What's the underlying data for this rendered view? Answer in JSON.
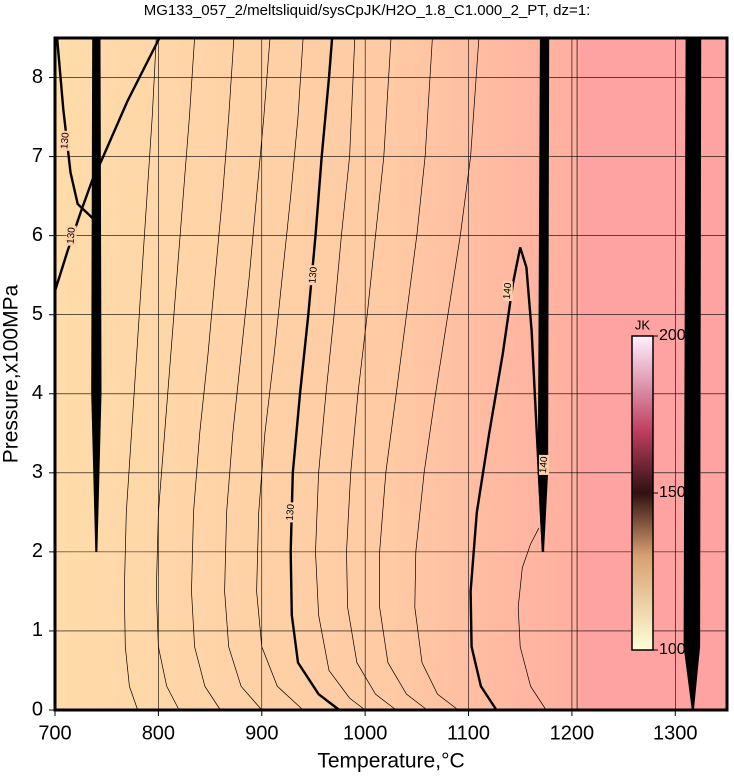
{
  "chart_data": {
    "type": "contour",
    "title": "MG133_057_2/meltsliquid/sysCpJK/H2O_1.8_C1.000_2_PT, dz=1:",
    "xlabel": "Temperature,°C",
    "ylabel": "Pressure,x100MPa",
    "xlim": [
      700,
      1350
    ],
    "ylim": [
      0,
      8.5
    ],
    "xticks": [
      700,
      800,
      900,
      1000,
      1100,
      1200,
      1300
    ],
    "yticks": [
      0,
      1,
      2,
      3,
      4,
      5,
      6,
      7,
      8
    ],
    "grid": true,
    "colorbar": {
      "label": "JK",
      "lim": [
        100,
        200
      ],
      "ticks": [
        100,
        150,
        200
      ]
    },
    "contours": [
      {
        "level": 130,
        "bold": true,
        "x": [
          975,
          955,
          935,
          929,
          928,
          930,
          937,
          945,
          952,
          958,
          965,
          968
        ],
        "y": [
          0,
          0.2,
          0.6,
          1.2,
          2,
          3,
          4,
          5,
          6,
          7,
          8,
          8.5
        ]
      },
      {
        "level": 140,
        "bold": true,
        "x": [
          1127,
          1112,
          1103,
          1102,
          1108,
          1120,
          1133,
          1143,
          1150,
          1156,
          1161,
          1166,
          1172
        ],
        "y": [
          0,
          0.3,
          0.8,
          1.5,
          2.5,
          3.5,
          4.5,
          5.4,
          5.85,
          5.6,
          4.8,
          3.5,
          2
        ]
      },
      {
        "level": 130,
        "bold": true,
        "x": [
          700,
          712,
          725,
          736,
          745,
          770,
          801
        ],
        "y": [
          5.3,
          5.8,
          6.3,
          6.7,
          6.95,
          7.7,
          8.5
        ]
      },
      {
        "level": 130,
        "bold": true,
        "x": [
          702,
          708,
          715,
          722,
          738
        ],
        "y": [
          8.5,
          7.6,
          6.8,
          6.4,
          6.2
        ]
      },
      {
        "bold": false,
        "x": [
          1000,
          985,
          965,
          955,
          952,
          955,
          962,
          970,
          977,
          985,
          990
        ],
        "y": [
          0,
          0.15,
          0.5,
          1.2,
          2,
          3,
          4,
          5,
          6,
          7,
          8.5
        ]
      },
      {
        "bold": false,
        "x": [
          1030,
          1010,
          992,
          983,
          982,
          986,
          993,
          1002,
          1010,
          1018,
          1025
        ],
        "y": [
          0,
          0.2,
          0.6,
          1.3,
          2,
          3,
          4,
          5,
          6,
          7,
          8.5
        ]
      },
      {
        "bold": false,
        "x": [
          1060,
          1040,
          1022,
          1014,
          1014,
          1020,
          1030,
          1040,
          1050,
          1058,
          1065
        ],
        "y": [
          0,
          0.2,
          0.6,
          1.3,
          2,
          3,
          4,
          5,
          6,
          7,
          8.5
        ]
      },
      {
        "bold": false,
        "x": [
          1090,
          1070,
          1055,
          1048,
          1049,
          1057,
          1068,
          1080,
          1092,
          1102,
          1110
        ],
        "y": [
          0,
          0.2,
          0.6,
          1.3,
          2,
          3,
          4,
          5,
          6,
          7,
          8.5
        ]
      },
      {
        "bold": false,
        "x": [
          940,
          915,
          900,
          895,
          897,
          903,
          912,
          920,
          928,
          935,
          940
        ],
        "y": [
          0,
          0.3,
          0.8,
          1.5,
          2.5,
          3.5,
          4.5,
          5.5,
          6.5,
          7.5,
          8.5
        ]
      },
      {
        "bold": false,
        "x": [
          900,
          880,
          868,
          864,
          866,
          872,
          880,
          888,
          895,
          902,
          908
        ],
        "y": [
          0,
          0.3,
          0.8,
          1.5,
          2.5,
          3.5,
          4.5,
          5.5,
          6.5,
          7.5,
          8.5
        ]
      },
      {
        "bold": false,
        "x": [
          860,
          845,
          835,
          832,
          834,
          840,
          848,
          855,
          862,
          868,
          873
        ],
        "y": [
          0,
          0.3,
          0.8,
          1.5,
          2.5,
          3.5,
          4.5,
          5.5,
          6.5,
          7.5,
          8.5
        ]
      },
      {
        "bold": false,
        "x": [
          820,
          808,
          800,
          798,
          800,
          806,
          812,
          818,
          824,
          830,
          835
        ],
        "y": [
          0,
          0.3,
          0.8,
          1.5,
          2.5,
          3.5,
          4.5,
          5.5,
          6.5,
          7.5,
          8.5
        ]
      },
      {
        "bold": false,
        "x": [
          780,
          772,
          768,
          767,
          769,
          774,
          779,
          784,
          789,
          794,
          798
        ],
        "y": [
          0,
          0.3,
          0.8,
          1.5,
          2.5,
          3.5,
          4.5,
          5.5,
          6.5,
          7.5,
          8.5
        ]
      },
      {
        "bold": false,
        "x": [
          1205,
          1205
        ],
        "y": [
          0,
          8.5
        ]
      },
      {
        "bold": false,
        "x": [
          1175,
          1160,
          1150,
          1148,
          1152,
          1160,
          1168
        ],
        "y": [
          0,
          0.3,
          0.8,
          1.3,
          1.8,
          2.1,
          2.3
        ]
      }
    ],
    "bands": [
      {
        "x": [
          736,
          744,
          745,
          741,
          739,
          735
        ],
        "y": [
          8.5,
          8.5,
          4,
          2,
          2,
          4
        ]
      },
      {
        "x": [
          1169,
          1178,
          1177,
          1173,
          1171,
          1167
        ],
        "y": [
          8.5,
          8.5,
          3,
          2,
          2,
          3
        ]
      },
      {
        "x": [
          1310,
          1325,
          1324,
          1318,
          1316,
          1308
        ],
        "y": [
          8.5,
          8.5,
          0.8,
          0,
          0,
          0.8
        ]
      }
    ],
    "contour_labels": [
      {
        "level": 130,
        "x": 710,
        "y": 7.2
      },
      {
        "level": 130,
        "x": 716,
        "y": 6.0
      },
      {
        "level": 130,
        "x": 950,
        "y": 5.5
      },
      {
        "level": 130,
        "x": 928,
        "y": 2.5
      },
      {
        "level": 140,
        "x": 1138,
        "y": 5.3
      },
      {
        "level": 140,
        "x": 1173,
        "y": 3.1
      }
    ]
  }
}
